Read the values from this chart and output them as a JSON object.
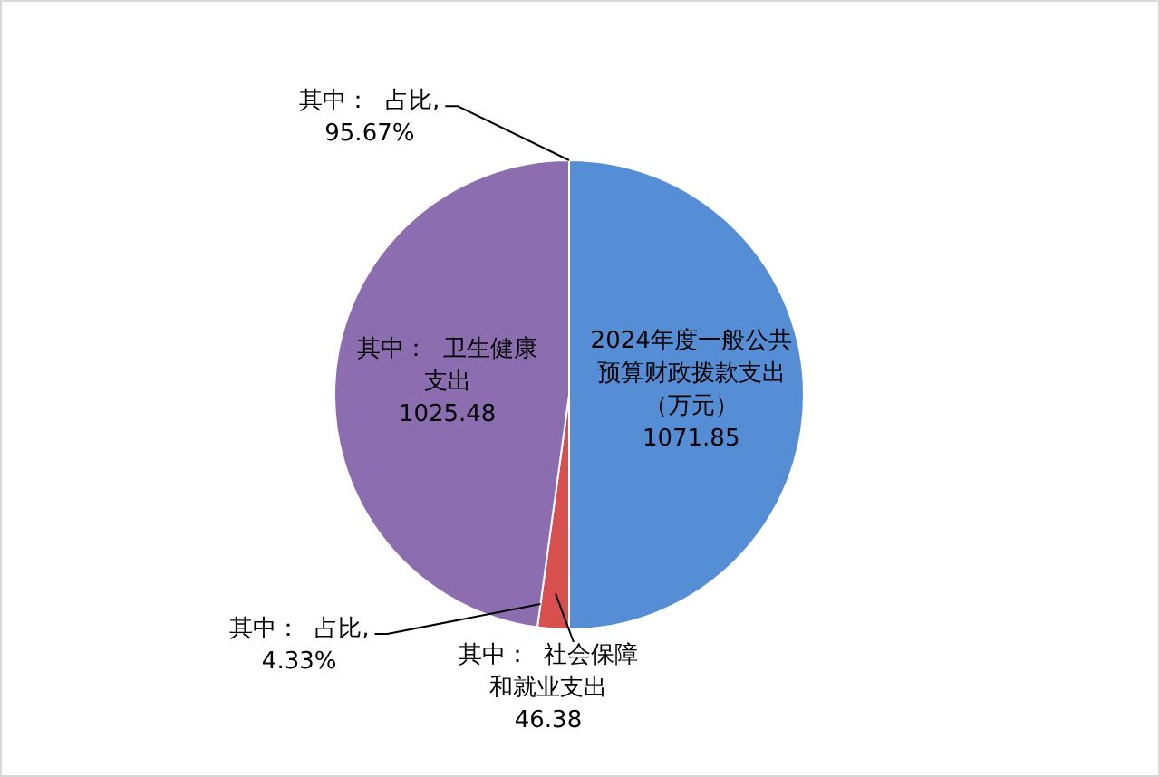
{
  "chart_data": {
    "type": "pie",
    "categories": [
      "2024年度一般公共预算财政拨款支出（万元）",
      "其中：  社会保障和就业支出",
      "其中：  卫生健康支出"
    ],
    "values": [
      1071.85,
      46.38,
      1025.48
    ],
    "colors": [
      "#558ed5",
      "#d7504d",
      "#8b6db0"
    ],
    "data_labels": true,
    "legend": false,
    "annotations": [
      "其中：  占比, 95.67%",
      "其中：  占比, 4.33%"
    ]
  }
}
